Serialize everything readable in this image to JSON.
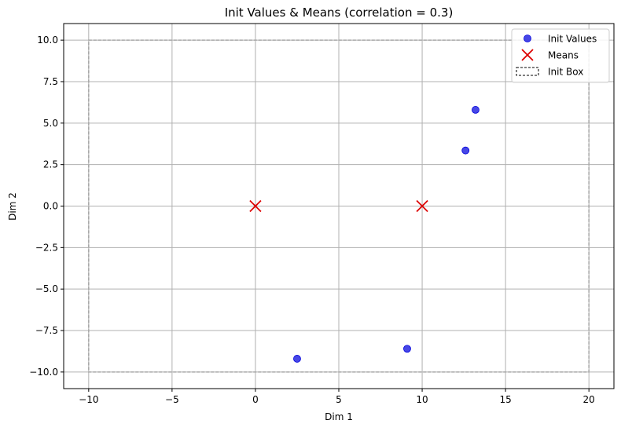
{
  "chart_data": {
    "type": "scatter",
    "title": "Init Values & Means (correlation = 0.3)",
    "xlabel": "Dim 1",
    "ylabel": "Dim 2",
    "xlim": [
      -11.5,
      21.5
    ],
    "ylim": [
      -11,
      11
    ],
    "xticks": [
      -10,
      -5,
      0,
      5,
      10,
      15,
      20
    ],
    "xtick_labels": [
      "−10",
      "−5",
      "0",
      "5",
      "10",
      "15",
      "20"
    ],
    "yticks": [
      -10,
      -7.5,
      -5,
      -2.5,
      0,
      2.5,
      5,
      7.5,
      10
    ],
    "ytick_labels": [
      "−10.0",
      "−7.5",
      "−5.0",
      "−2.5",
      "0.0",
      "2.5",
      "5.0",
      "7.5",
      "10.0"
    ],
    "grid": true,
    "legend_position": "top-right",
    "series": [
      {
        "name": "Init Values",
        "kind": "points",
        "color": "#0000dd",
        "points": [
          {
            "x": 2.5,
            "y": -9.2
          },
          {
            "x": 9.1,
            "y": -8.6
          },
          {
            "x": 12.6,
            "y": 3.35
          },
          {
            "x": 13.2,
            "y": 5.8
          }
        ]
      },
      {
        "name": "Means",
        "kind": "x-markers",
        "color": "#dd0000",
        "points": [
          {
            "x": 0,
            "y": 0
          },
          {
            "x": 10,
            "y": 0
          }
        ]
      },
      {
        "name": "Init Box",
        "kind": "rectangle",
        "color": "#aaaaaa",
        "x_range": [
          -10,
          20
        ],
        "y_range": [
          -10,
          10
        ]
      }
    ]
  }
}
